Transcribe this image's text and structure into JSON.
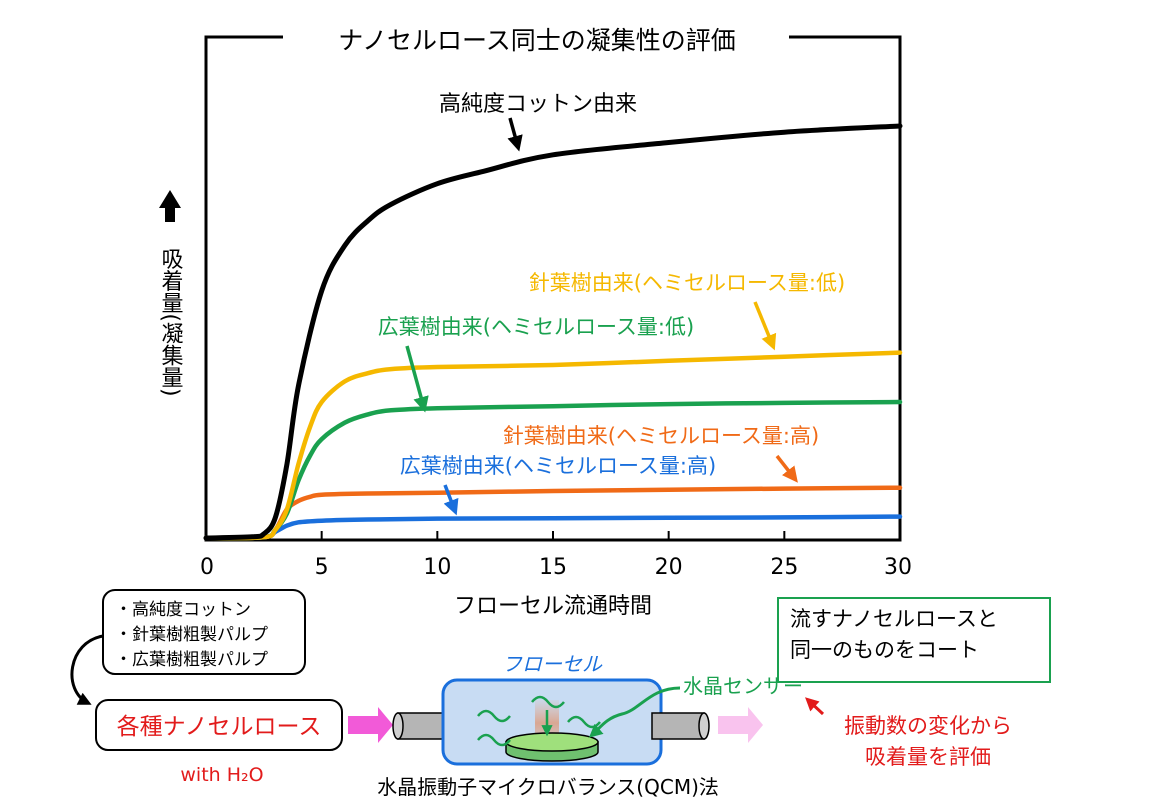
{
  "chart_data": {
    "type": "line",
    "title": "ナノセルロース同士の凝集性の評価",
    "xlabel": "フローセル流通時間",
    "ylabel": "吸着量(凝集量)",
    "xlim": [
      0,
      30
    ],
    "ylim": [
      0,
      1
    ],
    "xticks": [
      0,
      5,
      10,
      15,
      20,
      25,
      30
    ],
    "grid": false,
    "series": [
      {
        "name": "高純度コットン由来",
        "color": "#000000",
        "x": [
          0,
          2,
          2.5,
          3,
          3.5,
          4,
          5,
          6,
          7,
          8,
          10,
          12,
          15,
          20,
          25,
          30
        ],
        "y": [
          0,
          0.003,
          0.01,
          0.05,
          0.18,
          0.37,
          0.6,
          0.71,
          0.77,
          0.81,
          0.86,
          0.89,
          0.93,
          0.96,
          0.985,
          1.0
        ]
      },
      {
        "name": "針葉樹由来(ヘミセルロース量:低)",
        "color": "#f5b800",
        "x": [
          0,
          2.5,
          3,
          3.5,
          4,
          4.5,
          5,
          6,
          7,
          8,
          10,
          15,
          20,
          25,
          30
        ],
        "y": [
          0,
          0.002,
          0.02,
          0.07,
          0.18,
          0.27,
          0.33,
          0.38,
          0.4,
          0.41,
          0.415,
          0.42,
          0.43,
          0.44,
          0.45
        ]
      },
      {
        "name": "広葉樹由来(ヘミセルロース量:低)",
        "color": "#1aa14f",
        "x": [
          0,
          2.5,
          3,
          3.5,
          4,
          4.5,
          5,
          6,
          7,
          8,
          10,
          15,
          20,
          25,
          30
        ],
        "y": [
          0,
          0.002,
          0.02,
          0.06,
          0.14,
          0.2,
          0.24,
          0.28,
          0.3,
          0.31,
          0.315,
          0.32,
          0.325,
          0.328,
          0.33
        ]
      },
      {
        "name": "針葉樹由来(ヘミセルロース量:高)",
        "color": "#f06a17",
        "x": [
          0,
          2.5,
          3,
          3.5,
          4,
          4.5,
          5,
          7,
          10,
          15,
          20,
          25,
          30
        ],
        "y": [
          0,
          0.002,
          0.02,
          0.07,
          0.09,
          0.1,
          0.105,
          0.108,
          0.11,
          0.114,
          0.117,
          0.12,
          0.122
        ]
      },
      {
        "name": "広葉樹由来(ヘミセルロース量:高)",
        "color": "#1a6fdc",
        "x": [
          0,
          2.5,
          3,
          3.5,
          4,
          5,
          7,
          10,
          15,
          20,
          25,
          30
        ],
        "y": [
          0,
          0.002,
          0.015,
          0.03,
          0.038,
          0.042,
          0.045,
          0.047,
          0.048,
          0.049,
          0.05,
          0.052
        ]
      }
    ]
  },
  "lower": {
    "source_list": [
      "・高純度コットン",
      "・針葉樹粗製パルプ",
      "・広葉樹粗製パルプ"
    ],
    "nanocellulose_box": "各種ナノセルロース",
    "with_h2o": "with H₂O",
    "flow_cell_label": "フローセル",
    "crystal_sensor_label": "水晶センサー",
    "coating_note_line1": "流すナノセルロースと",
    "coating_note_line2": "同一のものをコート",
    "eval_line1": "振動数の変化から",
    "eval_line2": "吸着量を評価",
    "method_label": "水晶振動子マイクロバランス(QCM)法"
  },
  "colors": {
    "red": "#e21b1b",
    "green": "#1aa14f",
    "blue": "#1a6fdc",
    "pink": "#f25ad8",
    "pink_light": "#f9c3ee",
    "cell_fill": "#c8dcf3",
    "cell_stroke": "#1a6fdc"
  }
}
